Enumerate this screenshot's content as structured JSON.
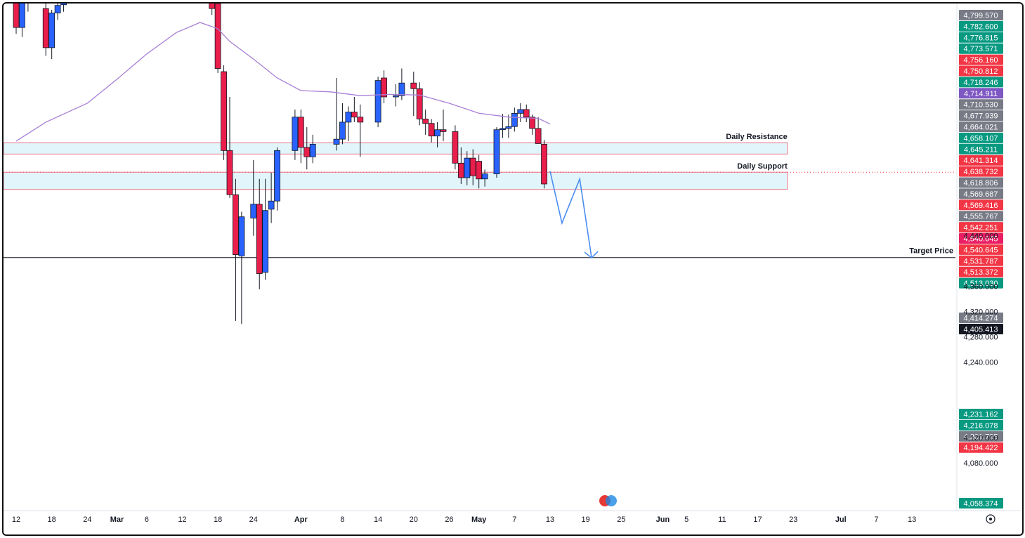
{
  "chart_data": {
    "type": "candlestick",
    "x_axis": {
      "range": [
        "2025-02-12",
        "2025-07-15"
      ],
      "ticks": [
        {
          "date": "2025-02-12",
          "label": "12"
        },
        {
          "date": "2025-02-18",
          "label": "18"
        },
        {
          "date": "2025-02-24",
          "label": "24"
        },
        {
          "date": "2025-03-01",
          "label": "Mar"
        },
        {
          "date": "2025-03-06",
          "label": "6"
        },
        {
          "date": "2025-03-12",
          "label": "12"
        },
        {
          "date": "2025-03-18",
          "label": "18"
        },
        {
          "date": "2025-03-24",
          "label": "24"
        },
        {
          "date": "2025-04-01",
          "label": "Apr"
        },
        {
          "date": "2025-04-08",
          "label": "8"
        },
        {
          "date": "2025-04-14",
          "label": "14"
        },
        {
          "date": "2025-04-20",
          "label": "20"
        },
        {
          "date": "2025-04-26",
          "label": "26"
        },
        {
          "date": "2025-05-01",
          "label": "May"
        },
        {
          "date": "2025-05-07",
          "label": "7"
        },
        {
          "date": "2025-05-13",
          "label": "13"
        },
        {
          "date": "2025-05-19",
          "label": "19"
        },
        {
          "date": "2025-05-25",
          "label": "25"
        },
        {
          "date": "2025-06-01",
          "label": "Jun"
        },
        {
          "date": "2025-06-05",
          "label": "5"
        },
        {
          "date": "2025-06-11",
          "label": "11"
        },
        {
          "date": "2025-06-17",
          "label": "17"
        },
        {
          "date": "2025-06-23",
          "label": "23"
        },
        {
          "date": "2025-07-01",
          "label": "Jul"
        },
        {
          "date": "2025-07-07",
          "label": "7"
        },
        {
          "date": "2025-07-13",
          "label": "13"
        }
      ]
    },
    "y_axis": {
      "range": [
        4040,
        4808
      ],
      "ticks": [
        {
          "value": 4440,
          "label": "4,440.000"
        },
        {
          "value": 4360,
          "label": "4,360.000"
        },
        {
          "value": 4320,
          "label": "4,320.000"
        },
        {
          "value": 4280,
          "label": "4,280.000"
        },
        {
          "value": 4240,
          "label": "4,240.000"
        },
        {
          "value": 4120,
          "label": "4,120.000"
        },
        {
          "value": 4080,
          "label": "4,080.000"
        }
      ]
    },
    "colors": {
      "bull": "#2962ff",
      "bear": "#e91e4b",
      "ma": "#a77fd6",
      "zone_fill": "#e1f5fb",
      "zone_border": "#f07a8a",
      "arrow": "#4a8df0",
      "target_line": "#131722"
    },
    "candles": [
      {
        "date": "2025-02-12",
        "o": 4810,
        "h": 4830,
        "l": 4760,
        "c": 4770
      },
      {
        "date": "2025-02-13",
        "o": 4770,
        "h": 4825,
        "l": 4755,
        "c": 4815
      },
      {
        "date": "2025-02-14",
        "o": 4812,
        "h": 4830,
        "l": 4795,
        "c": 4818
      },
      {
        "date": "2025-02-17",
        "o": 4800,
        "h": 4818,
        "l": 4725,
        "c": 4738
      },
      {
        "date": "2025-02-18",
        "o": 4738,
        "h": 4798,
        "l": 4720,
        "c": 4793
      },
      {
        "date": "2025-02-19",
        "o": 4793,
        "h": 4812,
        "l": 4782,
        "c": 4805
      },
      {
        "date": "2025-02-20",
        "o": 4806,
        "h": 4820,
        "l": 4795,
        "c": 4812
      },
      {
        "date": "2025-03-17",
        "o": 4820,
        "h": 4830,
        "l": 4790,
        "c": 4800
      },
      {
        "date": "2025-03-18",
        "o": 4808,
        "h": 4820,
        "l": 4698,
        "c": 4705
      },
      {
        "date": "2025-03-19",
        "o": 4700,
        "h": 4710,
        "l": 4560,
        "c": 4575
      },
      {
        "date": "2025-03-20",
        "o": 4575,
        "h": 4660,
        "l": 4500,
        "c": 4505
      },
      {
        "date": "2025-03-21",
        "o": 4505,
        "h": 4530,
        "l": 4305,
        "c": 4410
      },
      {
        "date": "2025-03-22",
        "o": 4408,
        "h": 4478,
        "l": 4300,
        "c": 4470
      },
      {
        "date": "2025-03-24",
        "o": 4468,
        "h": 4560,
        "l": 4440,
        "c": 4490
      },
      {
        "date": "2025-03-25",
        "o": 4490,
        "h": 4530,
        "l": 4355,
        "c": 4380
      },
      {
        "date": "2025-03-26",
        "o": 4382,
        "h": 4530,
        "l": 4370,
        "c": 4480
      },
      {
        "date": "2025-03-27",
        "o": 4482,
        "h": 4540,
        "l": 4460,
        "c": 4495
      },
      {
        "date": "2025-03-28",
        "o": 4495,
        "h": 4580,
        "l": 4480,
        "c": 4575
      },
      {
        "date": "2025-03-31",
        "o": 4575,
        "h": 4640,
        "l": 4560,
        "c": 4628
      },
      {
        "date": "2025-04-01",
        "o": 4628,
        "h": 4640,
        "l": 4555,
        "c": 4580
      },
      {
        "date": "2025-04-02",
        "o": 4580,
        "h": 4612,
        "l": 4545,
        "c": 4565
      },
      {
        "date": "2025-04-03",
        "o": 4565,
        "h": 4600,
        "l": 4555,
        "c": 4585
      },
      {
        "date": "2025-04-07",
        "o": 4585,
        "h": 4690,
        "l": 4575,
        "c": 4593
      },
      {
        "date": "2025-04-08",
        "o": 4593,
        "h": 4650,
        "l": 4585,
        "c": 4620
      },
      {
        "date": "2025-04-09",
        "o": 4620,
        "h": 4645,
        "l": 4590,
        "c": 4636
      },
      {
        "date": "2025-04-10",
        "o": 4636,
        "h": 4660,
        "l": 4620,
        "c": 4628
      },
      {
        "date": "2025-04-11",
        "o": 4628,
        "h": 4648,
        "l": 4565,
        "c": 4620
      },
      {
        "date": "2025-04-14",
        "o": 4620,
        "h": 4692,
        "l": 4612,
        "c": 4686
      },
      {
        "date": "2025-04-15",
        "o": 4690,
        "h": 4702,
        "l": 4650,
        "c": 4660
      },
      {
        "date": "2025-04-17",
        "o": 4660,
        "h": 4680,
        "l": 4645,
        "c": 4662
      },
      {
        "date": "2025-04-18",
        "o": 4662,
        "h": 4705,
        "l": 4655,
        "c": 4682
      },
      {
        "date": "2025-04-20",
        "o": 4682,
        "h": 4700,
        "l": 4630,
        "c": 4673
      },
      {
        "date": "2025-04-21",
        "o": 4673,
        "h": 4683,
        "l": 4615,
        "c": 4625
      },
      {
        "date": "2025-04-22",
        "o": 4625,
        "h": 4640,
        "l": 4600,
        "c": 4618
      },
      {
        "date": "2025-04-23",
        "o": 4618,
        "h": 4625,
        "l": 4588,
        "c": 4598
      },
      {
        "date": "2025-04-24",
        "o": 4598,
        "h": 4620,
        "l": 4580,
        "c": 4608
      },
      {
        "date": "2025-04-25",
        "o": 4608,
        "h": 4640,
        "l": 4590,
        "c": 4605
      },
      {
        "date": "2025-04-27",
        "o": 4605,
        "h": 4615,
        "l": 4545,
        "c": 4555
      },
      {
        "date": "2025-04-28",
        "o": 4555,
        "h": 4580,
        "l": 4522,
        "c": 4532
      },
      {
        "date": "2025-04-29",
        "o": 4532,
        "h": 4574,
        "l": 4520,
        "c": 4563
      },
      {
        "date": "2025-04-30",
        "o": 4563,
        "h": 4577,
        "l": 4520,
        "c": 4535
      },
      {
        "date": "2025-05-01",
        "o": 4558,
        "h": 4568,
        "l": 4515,
        "c": 4530
      },
      {
        "date": "2025-05-02",
        "o": 4530,
        "h": 4545,
        "l": 4518,
        "c": 4538
      },
      {
        "date": "2025-05-04",
        "o": 4538,
        "h": 4612,
        "l": 4532,
        "c": 4608
      },
      {
        "date": "2025-05-05",
        "o": 4608,
        "h": 4633,
        "l": 4595,
        "c": 4610
      },
      {
        "date": "2025-05-06",
        "o": 4610,
        "h": 4632,
        "l": 4595,
        "c": 4613
      },
      {
        "date": "2025-05-07",
        "o": 4613,
        "h": 4643,
        "l": 4605,
        "c": 4634
      },
      {
        "date": "2025-05-08",
        "o": 4634,
        "h": 4650,
        "l": 4620,
        "c": 4640
      },
      {
        "date": "2025-05-09",
        "o": 4640,
        "h": 4648,
        "l": 4620,
        "c": 4628
      },
      {
        "date": "2025-05-10",
        "o": 4628,
        "h": 4632,
        "l": 4600,
        "c": 4610
      },
      {
        "date": "2025-05-11",
        "o": 4610,
        "h": 4628,
        "l": 4592,
        "c": 4586
      },
      {
        "date": "2025-05-12",
        "o": 4585,
        "h": 4592,
        "l": 4515,
        "c": 4522
      }
    ],
    "ma_series": [
      {
        "date": "2025-02-12",
        "v": 4590
      },
      {
        "date": "2025-02-17",
        "v": 4620
      },
      {
        "date": "2025-02-24",
        "v": 4650
      },
      {
        "date": "2025-03-01",
        "v": 4688
      },
      {
        "date": "2025-03-06",
        "v": 4728
      },
      {
        "date": "2025-03-11",
        "v": 4762
      },
      {
        "date": "2025-03-15",
        "v": 4778
      },
      {
        "date": "2025-03-18",
        "v": 4768
      },
      {
        "date": "2025-03-20",
        "v": 4748
      },
      {
        "date": "2025-03-24",
        "v": 4720
      },
      {
        "date": "2025-03-28",
        "v": 4690
      },
      {
        "date": "2025-04-01",
        "v": 4670
      },
      {
        "date": "2025-04-06",
        "v": 4668
      },
      {
        "date": "2025-04-11",
        "v": 4662
      },
      {
        "date": "2025-04-16",
        "v": 4664
      },
      {
        "date": "2025-04-21",
        "v": 4663
      },
      {
        "date": "2025-04-26",
        "v": 4650
      },
      {
        "date": "2025-05-01",
        "v": 4634
      },
      {
        "date": "2025-05-06",
        "v": 4628
      },
      {
        "date": "2025-05-11",
        "v": 4626
      },
      {
        "date": "2025-05-13",
        "v": 4617
      }
    ],
    "zones": [
      {
        "label": "Daily Resistance",
        "low": 4569.416,
        "high": 4587.5,
        "from": "2025-02-12",
        "to": "2025-06-22"
      },
      {
        "label": "Daily Support",
        "low": 4513.372,
        "high": 4540.645,
        "from": "2025-02-12",
        "to": "2025-06-22"
      }
    ],
    "target": {
      "label": "Target Price",
      "value": 4405.413
    },
    "projection_path": [
      {
        "date": "2025-05-13",
        "v": 4542
      },
      {
        "date": "2025-05-15",
        "v": 4460
      },
      {
        "date": "2025-05-18",
        "v": 4530
      },
      {
        "date": "2025-05-20",
        "v": 4405
      }
    ],
    "price_badges": [
      {
        "value": "4,799.570",
        "color": "#787b86"
      },
      {
        "value": "4,782.600",
        "color": "#089981"
      },
      {
        "value": "4,776.815",
        "color": "#089981"
      },
      {
        "value": "4,773.571",
        "color": "#089981"
      },
      {
        "value": "4,756.160",
        "color": "#f23645"
      },
      {
        "value": "4,750.812",
        "color": "#f23645"
      },
      {
        "value": "4,718.246",
        "color": "#089981"
      },
      {
        "value": "4,714.911",
        "color": "#7e57c2"
      },
      {
        "value": "4,710.530",
        "color": "#787b86"
      },
      {
        "value": "4,677.939",
        "color": "#787b86"
      },
      {
        "value": "4,664.021",
        "color": "#787b86"
      },
      {
        "value": "4,658.107",
        "color": "#089981"
      },
      {
        "value": "4,645.211",
        "color": "#089981"
      },
      {
        "value": "4,641.314",
        "color": "#f23645"
      },
      {
        "value": "4,638.732",
        "color": "#f23645"
      },
      {
        "value": "4,618.806",
        "color": "#787b86"
      },
      {
        "value": "4,569.687",
        "color": "#787b86"
      },
      {
        "value": "4,569.416",
        "color": "#f23645"
      },
      {
        "value": "4,555.767",
        "color": "#787b86"
      },
      {
        "value": "4,542.251",
        "color": "#f23645"
      },
      {
        "value": "4,540.645",
        "color": "#e91e63"
      },
      {
        "value": "4,540.645",
        "color": "#f23645"
      },
      {
        "value": "4,531.787",
        "color": "#f23645"
      },
      {
        "value": "4,513.372",
        "color": "#f23645"
      },
      {
        "value": "4,513.030",
        "color": "#089981"
      }
    ],
    "badges_mid": [
      {
        "value": "4,414.274",
        "color": "#787b86"
      },
      {
        "value": "4,405.413",
        "color": "#131722"
      }
    ],
    "badges_low": [
      {
        "value": "4,231.162",
        "color": "#089981"
      },
      {
        "value": "4,216.078",
        "color": "#089981"
      },
      {
        "value": "4,201.795",
        "color": "#787b86"
      },
      {
        "value": "4,194.422",
        "color": "#f23645"
      }
    ],
    "badge_bottom": {
      "value": "4,058.374",
      "color": "#089981"
    }
  }
}
